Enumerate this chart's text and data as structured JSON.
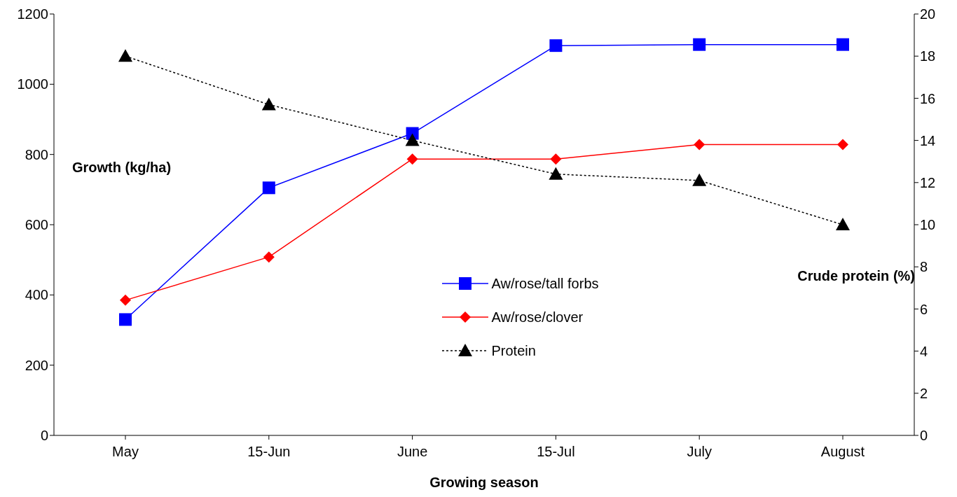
{
  "chart_data": {
    "type": "line",
    "xlabel": "Growing season",
    "ylabel": "Growth (kg/ha)",
    "y2label": "Crude protein (%)",
    "categories": [
      "May",
      "15-Jun",
      "June",
      "15-Jul",
      "July",
      "August"
    ],
    "series": [
      {
        "name": "Aw/rose/tall forbs",
        "color": "#0000ff",
        "marker": "square",
        "line_style": "solid",
        "values": [
          330,
          705,
          860,
          1110,
          1113,
          1113
        ]
      },
      {
        "name": "Aw/rose/clover",
        "color": "#ff0000",
        "marker": "diamond",
        "line_style": "solid",
        "values": [
          385,
          508,
          787,
          787,
          828,
          828
        ]
      },
      {
        "name": "Protein",
        "color": "#000000",
        "marker": "triangle",
        "line_style": "dotted",
        "axis": "y2",
        "values": [
          18,
          15.7,
          14,
          12.4,
          12.1,
          10
        ]
      }
    ],
    "ylim": [
      0,
      1200
    ],
    "yticks": [
      0,
      200,
      400,
      600,
      800,
      1000,
      1200
    ],
    "y2lim": [
      0,
      20
    ],
    "y2ticks": [
      0,
      2,
      4,
      6,
      8,
      10,
      12,
      14,
      16,
      18,
      20
    ],
    "legend": "center"
  }
}
